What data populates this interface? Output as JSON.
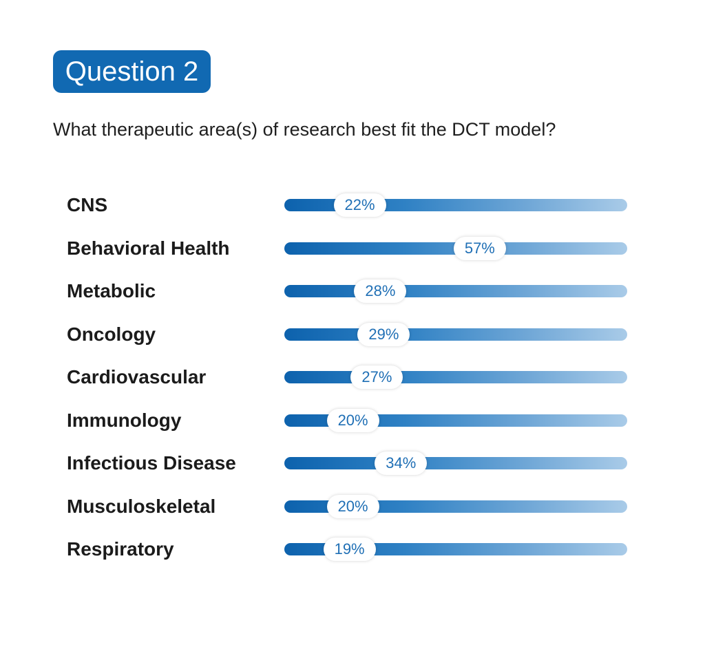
{
  "header": {
    "badge": "Question 2",
    "question": "What therapeutic area(s) of research best fit the DCT model?"
  },
  "colors": {
    "badge": "#1169b2",
    "bar_start": "#0d62ad",
    "bar_end": "#a9cbe8",
    "percent_text": "#1f6fb5"
  },
  "chart_data": {
    "type": "bar",
    "orientation": "horizontal",
    "categories": [
      "CNS",
      "Behavioral Health",
      "Metabolic",
      "Oncology",
      "Cardiovascular",
      "Immunology",
      "Infectious Disease",
      "Musculoskeletal",
      "Respiratory"
    ],
    "values": [
      22,
      57,
      28,
      29,
      27,
      20,
      34,
      20,
      19
    ],
    "labels": [
      "22%",
      "57%",
      "28%",
      "29%",
      "27%",
      "20%",
      "34%",
      "20%",
      "19%"
    ],
    "xlim": [
      0,
      100
    ],
    "grid": false,
    "legend": "none"
  }
}
